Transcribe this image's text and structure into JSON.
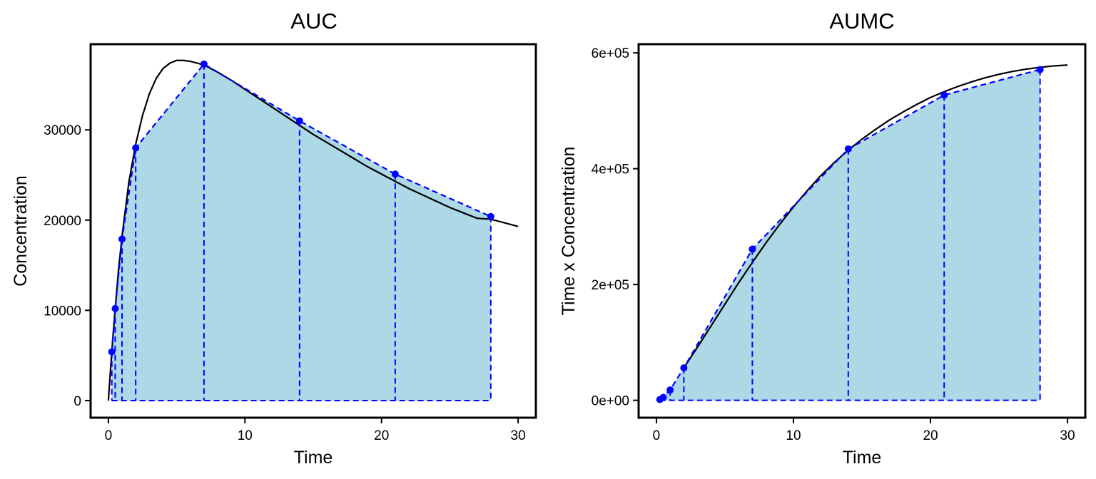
{
  "colors": {
    "fill": "#add8e6",
    "points": "#0000ff",
    "dashed": "#0000ff",
    "curve": "#000000",
    "frame": "#000000"
  },
  "chart_data": [
    {
      "type": "area",
      "title": "AUC",
      "xlabel": "Time",
      "ylabel": "Concentration",
      "xlim": [
        -1.3,
        31.3
      ],
      "ylim": [
        -1900,
        39500
      ],
      "xticks": [
        0,
        10,
        20,
        30
      ],
      "xtick_labels": [
        "0",
        "10",
        "20",
        "30"
      ],
      "yticks": [
        0,
        10000,
        20000,
        30000
      ],
      "ytick_labels": [
        "0",
        "10000",
        "20000",
        "30000"
      ],
      "grid": false,
      "points": {
        "x": [
          0.25,
          0.5,
          1,
          2,
          7,
          14,
          21,
          28
        ],
        "y": [
          5400,
          10200,
          17900,
          28000,
          37300,
          31000,
          25100,
          20400
        ]
      },
      "curve": {
        "x": [
          0,
          0.25,
          0.5,
          0.75,
          1,
          1.5,
          2,
          2.5,
          3,
          3.5,
          4,
          4.5,
          5,
          5.5,
          6,
          6.5,
          7,
          8,
          9,
          10,
          11,
          12,
          13,
          14,
          15,
          16,
          17,
          18,
          19,
          20,
          21,
          22,
          23,
          24,
          25,
          26,
          27,
          28,
          29,
          30
        ],
        "y": [
          0,
          5400,
          10200,
          14600,
          18200,
          24200,
          28400,
          31600,
          34000,
          35700,
          36800,
          37400,
          37700,
          37700,
          37600,
          37400,
          37200,
          36400,
          35500,
          34500,
          33500,
          32500,
          31500,
          30500,
          29500,
          28600,
          27700,
          26800,
          25900,
          25100,
          24300,
          23500,
          22800,
          22100,
          21400,
          20800,
          20200,
          20100,
          19700,
          19300
        ]
      }
    },
    {
      "type": "area",
      "title": "AUMC",
      "xlabel": "Time",
      "ylabel": "Time x Concentration",
      "xlim": [
        -1.3,
        31.3
      ],
      "ylim": [
        -30000,
        615000
      ],
      "xticks": [
        0,
        10,
        20,
        30
      ],
      "xtick_labels": [
        "0",
        "10",
        "20",
        "30"
      ],
      "yticks": [
        0,
        200000,
        400000,
        600000
      ],
      "ytick_labels": [
        "0e+00",
        "2e+05",
        "4e+05",
        "6e+05"
      ],
      "grid": false,
      "points": {
        "x": [
          0.25,
          0.5,
          1,
          2,
          7,
          14,
          21,
          28
        ],
        "y": [
          1350,
          5100,
          17900,
          56000,
          261100,
          434000,
          527100,
          571200
        ]
      },
      "curve": {
        "x": [
          2,
          3,
          4,
          5,
          6,
          7,
          8,
          9,
          10,
          11,
          12,
          13,
          14,
          15,
          16,
          17,
          18,
          19,
          20,
          21,
          22,
          23,
          24,
          25,
          26,
          27,
          28,
          29,
          30
        ],
        "y": [
          56000,
          92000,
          129000,
          166000,
          203000,
          238000,
          272000,
          304000,
          334000,
          362000,
          388000,
          411000,
          432000,
          451000,
          468000,
          484000,
          498000,
          511000,
          523000,
          533000,
          542000,
          550000,
          557000,
          563000,
          568000,
          572000,
          575000,
          577500,
          579000
        ]
      }
    }
  ]
}
